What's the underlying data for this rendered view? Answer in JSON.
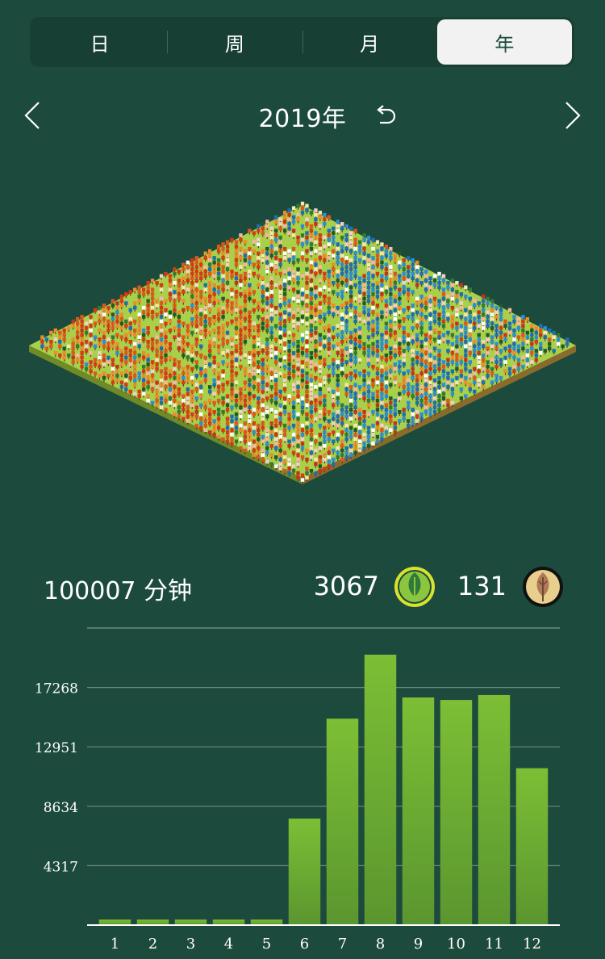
{
  "tabs": [
    {
      "label": "日",
      "active": false
    },
    {
      "label": "周",
      "active": false
    },
    {
      "label": "月",
      "active": false
    },
    {
      "label": "年",
      "active": true
    }
  ],
  "year_nav": {
    "title": "2019年",
    "prev_icon": "chevron-left-icon",
    "next_icon": "chevron-right-icon",
    "reset_icon": "undo-icon"
  },
  "stats": {
    "total_minutes": "100007 分钟",
    "healthy_trees": "3067",
    "dead_trees": "131",
    "healthy_icon": "leaf-icon",
    "dead_icon": "withered-leaf-icon"
  },
  "colors": {
    "background": "#1c4a3c",
    "bar_top": "#7cbf35",
    "bar_bottom": "#5a962f",
    "grass": "#a8d04a",
    "gridline": "#6b8c80"
  },
  "chart_data": {
    "type": "bar",
    "categories": [
      "1",
      "2",
      "3",
      "4",
      "5",
      "6",
      "7",
      "8",
      "9",
      "10",
      "11",
      "12"
    ],
    "values": [
      400,
      400,
      400,
      400,
      400,
      7740,
      15000,
      19650,
      16540,
      16360,
      16720,
      11400
    ],
    "yticks": [
      4317,
      8634,
      12951,
      17268
    ],
    "ylim": [
      0,
      21585
    ],
    "grid": true,
    "title": "",
    "xlabel": "",
    "ylabel": ""
  }
}
